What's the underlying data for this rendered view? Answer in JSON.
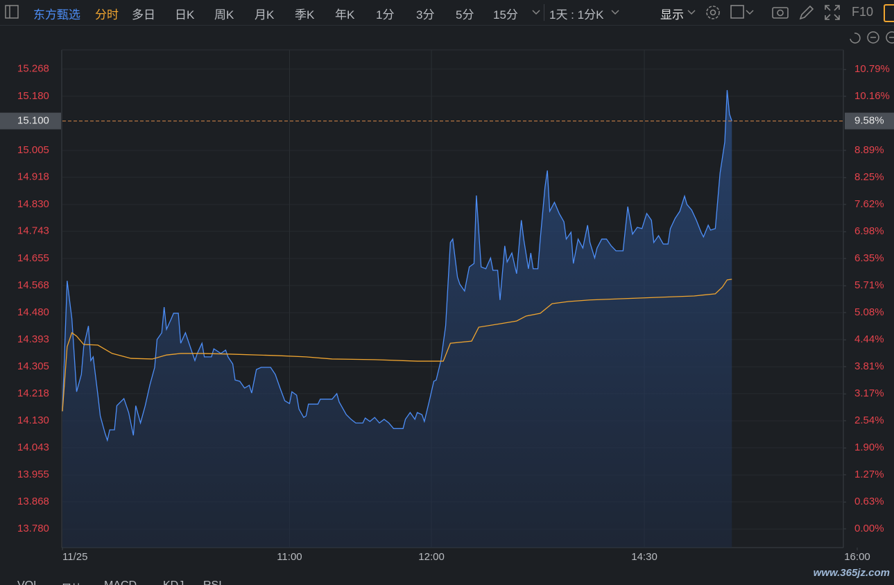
{
  "toolbar": {
    "stock_name": "东方甄选",
    "tabs": [
      "分时",
      "多日",
      "日K",
      "周K",
      "月K",
      "季K",
      "年K",
      "1分",
      "3分",
      "5分",
      "15分"
    ],
    "period": "1天 : 1分K",
    "display": "显示",
    "f10": "F10"
  },
  "bottom_tabs": [
    "VOL",
    "量比",
    "MACD",
    "KDJ",
    "RSI"
  ],
  "watermark": "www.365jz.com",
  "chart_data": {
    "type": "line",
    "xlim": [
      0,
      336
    ],
    "xticks": [
      {
        "value": 0,
        "label": "11/25"
      },
      {
        "value": 96,
        "label": "11:00"
      },
      {
        "value": 156,
        "label": "12:00"
      },
      {
        "value": 246,
        "label": "14:30"
      },
      {
        "value": 336,
        "label": "16:00"
      }
    ],
    "ylim": [
      13.72,
      15.33
    ],
    "yticks": [
      15.268,
      {
        "value": 15.18,
        "label": "15.180"
      },
      15.005,
      14.918,
      {
        "value": 14.83,
        "label": "14.830"
      },
      14.743,
      14.655,
      14.568,
      {
        "value": 14.48,
        "label": "14.480"
      },
      14.393,
      14.305,
      14.218,
      {
        "value": 14.13,
        "label": "14.130"
      },
      14.043,
      13.955,
      13.868,
      {
        "value": 13.78,
        "label": "13.780"
      }
    ],
    "y2lim": [
      -0.44,
      11.25
    ],
    "y2ticks": [
      {
        "value": 10.79,
        "label": "10.79%"
      },
      {
        "value": 10.16,
        "label": "10.16%"
      },
      {
        "value": 8.89,
        "label": "8.89%"
      },
      {
        "value": 8.25,
        "label": "8.25%"
      },
      {
        "value": 7.62,
        "label": "7.62%"
      },
      {
        "value": 6.98,
        "label": "6.98%"
      },
      {
        "value": 6.35,
        "label": "6.35%"
      },
      {
        "value": 5.71,
        "label": "5.71%"
      },
      {
        "value": 5.08,
        "label": "5.08%"
      },
      {
        "value": 4.44,
        "label": "4.44%"
      },
      {
        "value": 3.81,
        "label": "3.81%"
      },
      {
        "value": 3.17,
        "label": "3.17%"
      },
      {
        "value": 2.54,
        "label": "2.54%"
      },
      {
        "value": 1.9,
        "label": "1.90%"
      },
      {
        "value": 1.27,
        "label": "1.27%"
      },
      {
        "value": 0.63,
        "label": "0.63%"
      },
      {
        "value": 0,
        "label": "0.00%"
      }
    ],
    "current_price": {
      "value": 15.1,
      "label": "15.100"
    },
    "current_change": {
      "value": 9.58,
      "label": "9.58%"
    },
    "series": [
      {
        "color": "#4d8ef7",
        "fill": true,
        "x": [
          0,
          2,
          4,
          6,
          8,
          9,
          11,
          12,
          13,
          15,
          16,
          18,
          19,
          20,
          22,
          23,
          26,
          28,
          30,
          31,
          33,
          35,
          37,
          39,
          40,
          42,
          43,
          44,
          46,
          47,
          49,
          50,
          52,
          54,
          56,
          57,
          59,
          60,
          63,
          64,
          67,
          69,
          70,
          72,
          73,
          75,
          77,
          79,
          80,
          82,
          84,
          88,
          90,
          92,
          94,
          96,
          97,
          99,
          100,
          102,
          103,
          104,
          108,
          109,
          114,
          116,
          117,
          120,
          122,
          124,
          127,
          128,
          130,
          132,
          134,
          136,
          138,
          140,
          144,
          145,
          147,
          149,
          150,
          152,
          153,
          155,
          157,
          158,
          160,
          162,
          164,
          165,
          167,
          168,
          170,
          172,
          174,
          175,
          177,
          179,
          181,
          182,
          184,
          185,
          187,
          188,
          190,
          192,
          194,
          195,
          197,
          198,
          199,
          201,
          202,
          204,
          205,
          206,
          208,
          210,
          212,
          213,
          215,
          216,
          218,
          220,
          222,
          223,
          225,
          226,
          228,
          230,
          232,
          234,
          237,
          239,
          241,
          243,
          245,
          247,
          249,
          250,
          252,
          254,
          256,
          257,
          259,
          261,
          263,
          264,
          266,
          268,
          270,
          271,
          273,
          274,
          276,
          278,
          280,
          281,
          282,
          283
        ],
        "values": [
          14.161,
          14.583,
          14.46,
          14.224,
          14.28,
          14.37,
          14.437,
          14.325,
          14.337,
          14.213,
          14.146,
          14.09,
          14.067,
          14.101,
          14.101,
          14.179,
          14.202,
          14.157,
          14.083,
          14.179,
          14.123,
          14.179,
          14.247,
          14.303,
          14.393,
          14.415,
          14.498,
          14.426,
          14.46,
          14.478,
          14.478,
          14.381,
          14.415,
          14.37,
          14.325,
          14.348,
          14.381,
          14.337,
          14.337,
          14.363,
          14.348,
          14.359,
          14.337,
          14.314,
          14.262,
          14.258,
          14.236,
          14.245,
          14.22,
          14.296,
          14.303,
          14.303,
          14.28,
          14.236,
          14.195,
          14.186,
          14.224,
          14.213,
          14.168,
          14.141,
          14.146,
          14.184,
          14.184,
          14.2,
          14.2,
          14.218,
          14.191,
          14.15,
          14.135,
          14.123,
          14.123,
          14.139,
          14.128,
          14.141,
          14.123,
          14.135,
          14.123,
          14.105,
          14.105,
          14.135,
          14.157,
          14.135,
          14.157,
          14.15,
          14.128,
          14.191,
          14.258,
          14.262,
          14.325,
          14.437,
          14.707,
          14.718,
          14.595,
          14.572,
          14.55,
          14.628,
          14.639,
          14.859,
          14.628,
          14.622,
          14.657,
          14.617,
          14.617,
          14.521,
          14.696,
          14.644,
          14.673,
          14.606,
          14.779,
          14.718,
          14.622,
          14.673,
          14.622,
          14.622,
          14.718,
          14.886,
          14.94,
          14.808,
          14.837,
          14.801,
          14.774,
          14.718,
          14.74,
          14.639,
          14.718,
          14.689,
          14.763,
          14.707,
          14.657,
          14.689,
          14.718,
          14.718,
          14.696,
          14.68,
          14.68,
          14.823,
          14.734,
          14.756,
          14.752,
          14.801,
          14.779,
          14.707,
          14.729,
          14.702,
          14.702,
          14.752,
          14.785,
          14.808,
          14.857,
          14.83,
          14.812,
          14.779,
          14.74,
          14.725,
          14.763,
          14.747,
          14.752,
          14.931,
          15.032,
          15.2,
          15.122,
          15.1
        ]
      },
      {
        "color": "#f0a530",
        "fill": false,
        "x": [
          0,
          2,
          4,
          6,
          9,
          15,
          21,
          29,
          38,
          44,
          50,
          59,
          70,
          91,
          103,
          114,
          132,
          150,
          161,
          164,
          173,
          176,
          185,
          192,
          196,
          202,
          207,
          214,
          223,
          243,
          267,
          276,
          279,
          281,
          283
        ],
        "values": [
          14.161,
          14.37,
          14.415,
          14.404,
          14.377,
          14.375,
          14.348,
          14.332,
          14.33,
          14.343,
          14.348,
          14.348,
          14.346,
          14.341,
          14.337,
          14.33,
          14.328,
          14.323,
          14.323,
          14.381,
          14.388,
          14.433,
          14.444,
          14.453,
          14.469,
          14.478,
          14.509,
          14.516,
          14.521,
          14.527,
          14.534,
          14.541,
          14.563,
          14.586,
          14.588
        ]
      }
    ]
  }
}
